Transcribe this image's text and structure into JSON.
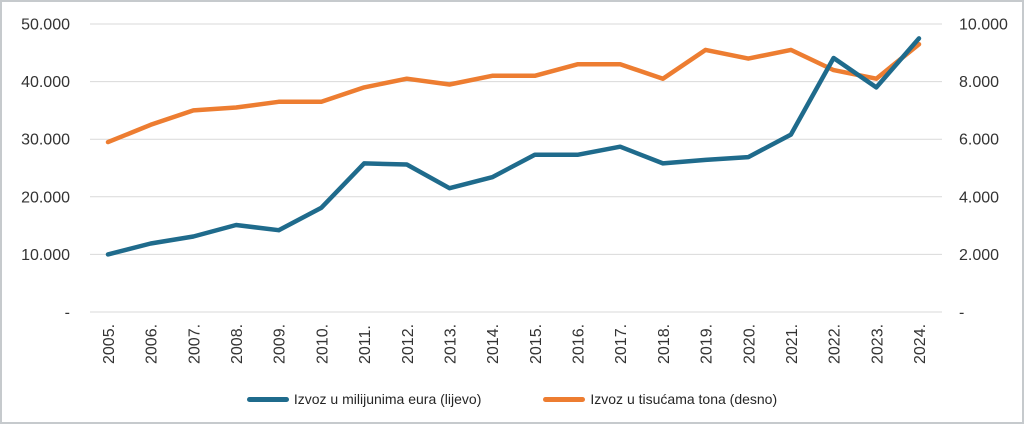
{
  "chart_data": {
    "type": "line",
    "title": "",
    "categories": [
      "2005.",
      "2006.",
      "2007.",
      "2008.",
      "2009.",
      "2010.",
      "2011.",
      "2012.",
      "2013.",
      "2014.",
      "2015.",
      "2016.",
      "2017.",
      "2018.",
      "2019.",
      "2020.",
      "2021.",
      "2022.",
      "2023.",
      "2024."
    ],
    "series": [
      {
        "name": "Izvoz u milijunima eura (lijevo)",
        "axis": "left",
        "color": "#1f6b8c",
        "values": [
          10000,
          11900,
          13100,
          15100,
          14200,
          18100,
          25800,
          25600,
          21500,
          23400,
          27300,
          27300,
          28700,
          25800,
          26400,
          26900,
          30800,
          44100,
          39000,
          47500
        ]
      },
      {
        "name": "Izvoz u tisućama tona (desno)",
        "axis": "right",
        "color": "#ed7d31",
        "values": [
          5900,
          6500,
          7000,
          7100,
          7300,
          7300,
          7800,
          8100,
          7900,
          8200,
          8200,
          8600,
          8600,
          8100,
          9100,
          8800,
          9100,
          8400,
          8100,
          9300
        ]
      }
    ],
    "left_axis": {
      "tick_labels": [
        "50.000",
        "40.000",
        "30.000",
        "20.000",
        "10.000",
        "-"
      ],
      "min": 0,
      "max": 50000
    },
    "right_axis": {
      "tick_labels": [
        "10.000",
        "8.000",
        "6.000",
        "4.000",
        "2.000",
        "-"
      ],
      "min": 0,
      "max": 10000
    },
    "grid": "horizontal",
    "legend_position": "bottom",
    "colors": {
      "gridline": "#d9d9d9",
      "tick_text": "#333333",
      "legend_text": "#262626",
      "frame_border": "#c6cacd",
      "background": "#ffffff"
    }
  }
}
